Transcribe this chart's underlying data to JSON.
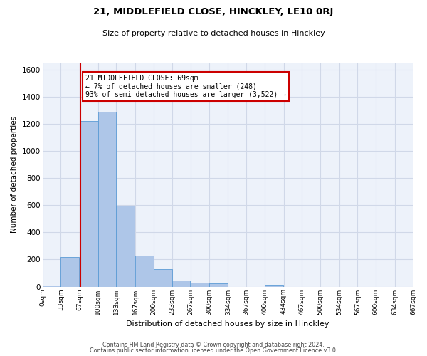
{
  "title": "21, MIDDLEFIELD CLOSE, HINCKLEY, LE10 0RJ",
  "subtitle": "Size of property relative to detached houses in Hinckley",
  "xlabel": "Distribution of detached houses by size in Hinckley",
  "ylabel": "Number of detached properties",
  "bar_color": "#aec6e8",
  "bar_edge_color": "#5b9bd5",
  "bin_edges": [
    0,
    33,
    67,
    100,
    133,
    167,
    200,
    233,
    267,
    300,
    334,
    367,
    400,
    434,
    467,
    500,
    534,
    567,
    600,
    634,
    667
  ],
  "bin_labels": [
    "0sqm",
    "33sqm",
    "67sqm",
    "100sqm",
    "133sqm",
    "167sqm",
    "200sqm",
    "233sqm",
    "267sqm",
    "300sqm",
    "334sqm",
    "367sqm",
    "400sqm",
    "434sqm",
    "467sqm",
    "500sqm",
    "534sqm",
    "567sqm",
    "600sqm",
    "634sqm",
    "667sqm"
  ],
  "bar_values": [
    10,
    220,
    1220,
    1290,
    595,
    230,
    130,
    45,
    30,
    25,
    0,
    0,
    15,
    0,
    0,
    0,
    0,
    0,
    0,
    0
  ],
  "ylim": [
    0,
    1650
  ],
  "yticks": [
    0,
    200,
    400,
    600,
    800,
    1000,
    1200,
    1400,
    1600
  ],
  "xlim": [
    0,
    667
  ],
  "property_line_x": 69,
  "annotation_title": "21 MIDDLEFIELD CLOSE: 69sqm",
  "annotation_line1": "← 7% of detached houses are smaller (248)",
  "annotation_line2": "93% of semi-detached houses are larger (3,522) →",
  "annotation_box_color": "#ffffff",
  "annotation_box_edge": "#cc0000",
  "vline_color": "#cc0000",
  "grid_color": "#d0d8e8",
  "background_color": "#edf2fa",
  "footer_line1": "Contains HM Land Registry data © Crown copyright and database right 2024.",
  "footer_line2": "Contains public sector information licensed under the Open Government Licence v3.0."
}
